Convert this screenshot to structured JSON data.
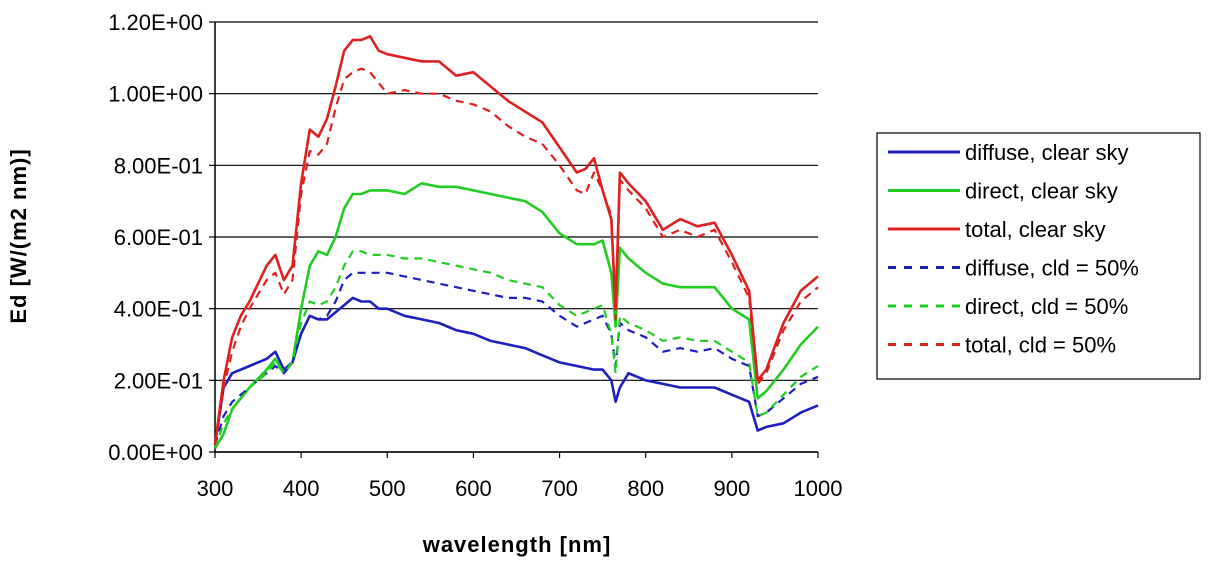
{
  "chart_data": {
    "type": "line",
    "xlabel": "wavelength  [nm]",
    "ylabel": "Ed  [W/(m2 nm)]",
    "xlim": [
      300,
      1000
    ],
    "ylim": [
      0,
      1.2
    ],
    "x_ticks": [
      "300",
      "400",
      "500",
      "600",
      "700",
      "800",
      "900",
      "1000"
    ],
    "y_ticks": [
      "0.00E+00",
      "2.00E-01",
      "4.00E-01",
      "6.00E-01",
      "8.00E-01",
      "1.00E+00",
      "1.20E+00"
    ],
    "grid": "horizontal",
    "legend_position": "right",
    "series": [
      {
        "name": "diffuse, clear sky",
        "color": "#1f1fbf",
        "dashed": false,
        "x": [
          300,
          310,
          320,
          340,
          360,
          370,
          380,
          390,
          400,
          410,
          420,
          430,
          440,
          450,
          460,
          470,
          480,
          490,
          500,
          520,
          540,
          560,
          580,
          600,
          620,
          640,
          660,
          680,
          700,
          720,
          740,
          750,
          760,
          765,
          770,
          780,
          800,
          820,
          840,
          860,
          880,
          900,
          920,
          930,
          940,
          960,
          980,
          1000
        ],
        "y": [
          0.02,
          0.18,
          0.22,
          0.24,
          0.26,
          0.28,
          0.23,
          0.25,
          0.33,
          0.38,
          0.37,
          0.37,
          0.39,
          0.41,
          0.43,
          0.42,
          0.42,
          0.4,
          0.4,
          0.38,
          0.37,
          0.36,
          0.34,
          0.33,
          0.31,
          0.3,
          0.29,
          0.27,
          0.25,
          0.24,
          0.23,
          0.23,
          0.2,
          0.14,
          0.18,
          0.22,
          0.2,
          0.19,
          0.18,
          0.18,
          0.18,
          0.16,
          0.14,
          0.06,
          0.07,
          0.08,
          0.11,
          0.13
        ]
      },
      {
        "name": "direct, clear sky",
        "color": "#22cc22",
        "dashed": false,
        "x": [
          300,
          310,
          320,
          340,
          360,
          370,
          380,
          390,
          400,
          410,
          420,
          430,
          440,
          450,
          460,
          470,
          480,
          500,
          520,
          540,
          560,
          580,
          600,
          620,
          640,
          660,
          680,
          700,
          720,
          740,
          750,
          760,
          765,
          770,
          780,
          800,
          820,
          840,
          860,
          880,
          900,
          920,
          930,
          940,
          960,
          980,
          1000
        ],
        "y": [
          0.01,
          0.05,
          0.12,
          0.18,
          0.23,
          0.26,
          0.22,
          0.25,
          0.4,
          0.52,
          0.56,
          0.55,
          0.6,
          0.68,
          0.72,
          0.72,
          0.73,
          0.73,
          0.72,
          0.75,
          0.74,
          0.74,
          0.73,
          0.72,
          0.71,
          0.7,
          0.67,
          0.61,
          0.58,
          0.58,
          0.59,
          0.5,
          0.35,
          0.57,
          0.54,
          0.5,
          0.47,
          0.46,
          0.46,
          0.46,
          0.4,
          0.37,
          0.15,
          0.17,
          0.23,
          0.3,
          0.35
        ]
      },
      {
        "name": "total, clear sky",
        "color": "#dd2020",
        "dashed": false,
        "x": [
          300,
          310,
          320,
          330,
          340,
          350,
          360,
          370,
          380,
          390,
          400,
          410,
          420,
          430,
          440,
          450,
          460,
          470,
          480,
          490,
          500,
          520,
          540,
          560,
          580,
          600,
          620,
          640,
          660,
          680,
          700,
          720,
          730,
          740,
          750,
          760,
          765,
          770,
          780,
          800,
          820,
          840,
          860,
          880,
          900,
          920,
          930,
          940,
          960,
          980,
          1000
        ],
        "y": [
          0.02,
          0.2,
          0.32,
          0.38,
          0.42,
          0.47,
          0.52,
          0.55,
          0.48,
          0.52,
          0.75,
          0.9,
          0.88,
          0.93,
          1.02,
          1.12,
          1.15,
          1.15,
          1.16,
          1.12,
          1.11,
          1.1,
          1.09,
          1.09,
          1.05,
          1.06,
          1.02,
          0.98,
          0.95,
          0.92,
          0.85,
          0.78,
          0.79,
          0.82,
          0.73,
          0.65,
          0.4,
          0.78,
          0.75,
          0.7,
          0.62,
          0.65,
          0.63,
          0.64,
          0.55,
          0.45,
          0.2,
          0.23,
          0.36,
          0.45,
          0.49
        ]
      },
      {
        "name": "diffuse, cld = 50%",
        "color": "#1f1fbf",
        "dashed": true,
        "x": [
          300,
          310,
          320,
          340,
          360,
          370,
          380,
          390,
          400,
          410,
          420,
          430,
          440,
          450,
          460,
          470,
          480,
          500,
          520,
          540,
          560,
          580,
          600,
          620,
          640,
          660,
          680,
          700,
          720,
          740,
          750,
          760,
          765,
          770,
          780,
          800,
          820,
          840,
          860,
          880,
          900,
          920,
          930,
          940,
          960,
          980,
          1000
        ],
        "y": [
          0.02,
          0.1,
          0.14,
          0.18,
          0.22,
          0.24,
          0.22,
          0.25,
          0.33,
          0.38,
          0.37,
          0.38,
          0.42,
          0.48,
          0.5,
          0.5,
          0.5,
          0.5,
          0.49,
          0.48,
          0.47,
          0.46,
          0.45,
          0.44,
          0.43,
          0.43,
          0.42,
          0.38,
          0.35,
          0.37,
          0.38,
          0.33,
          0.24,
          0.36,
          0.34,
          0.32,
          0.28,
          0.29,
          0.28,
          0.29,
          0.26,
          0.24,
          0.1,
          0.11,
          0.15,
          0.19,
          0.21
        ]
      },
      {
        "name": "direct, cld = 50%",
        "color": "#22cc22",
        "dashed": true,
        "x": [
          300,
          310,
          320,
          340,
          360,
          370,
          380,
          390,
          400,
          410,
          420,
          430,
          440,
          450,
          460,
          470,
          480,
          500,
          520,
          540,
          560,
          580,
          600,
          620,
          640,
          660,
          680,
          700,
          720,
          740,
          750,
          760,
          765,
          770,
          780,
          800,
          820,
          840,
          860,
          880,
          900,
          920,
          930,
          940,
          960,
          980,
          1000
        ],
        "y": [
          0.01,
          0.08,
          0.12,
          0.18,
          0.22,
          0.25,
          0.22,
          0.25,
          0.36,
          0.42,
          0.41,
          0.42,
          0.46,
          0.52,
          0.56,
          0.56,
          0.55,
          0.55,
          0.54,
          0.54,
          0.53,
          0.52,
          0.51,
          0.5,
          0.48,
          0.47,
          0.46,
          0.41,
          0.38,
          0.4,
          0.41,
          0.33,
          0.22,
          0.38,
          0.36,
          0.34,
          0.31,
          0.32,
          0.31,
          0.31,
          0.28,
          0.25,
          0.1,
          0.11,
          0.16,
          0.21,
          0.24
        ]
      },
      {
        "name": "total, cld = 50%",
        "color": "#dd2020",
        "dashed": true,
        "x": [
          300,
          310,
          320,
          330,
          340,
          350,
          360,
          370,
          380,
          390,
          400,
          410,
          420,
          430,
          440,
          450,
          460,
          470,
          480,
          490,
          500,
          520,
          540,
          560,
          580,
          600,
          620,
          640,
          660,
          680,
          700,
          720,
          730,
          740,
          750,
          760,
          765,
          770,
          780,
          800,
          820,
          840,
          860,
          880,
          900,
          920,
          930,
          940,
          960,
          980,
          1000
        ],
        "y": [
          0.02,
          0.18,
          0.28,
          0.35,
          0.4,
          0.44,
          0.48,
          0.5,
          0.44,
          0.48,
          0.72,
          0.84,
          0.83,
          0.86,
          0.96,
          1.04,
          1.06,
          1.07,
          1.06,
          1.03,
          1.0,
          1.01,
          1.0,
          1.0,
          0.98,
          0.97,
          0.95,
          0.91,
          0.88,
          0.86,
          0.8,
          0.73,
          0.72,
          0.78,
          0.73,
          0.66,
          0.37,
          0.76,
          0.73,
          0.68,
          0.6,
          0.62,
          0.6,
          0.62,
          0.53,
          0.43,
          0.19,
          0.22,
          0.34,
          0.42,
          0.46
        ]
      }
    ]
  }
}
